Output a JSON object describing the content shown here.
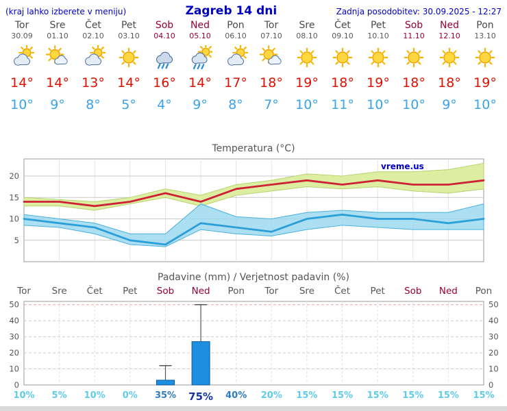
{
  "header": {
    "left_note": "(kraj lahko izberete v meniju)",
    "title": "Zagreb 14 dni",
    "updated": "Zadnja posodobitev: 30.09.2025 - 12:27"
  },
  "days": [
    {
      "name": "Tor",
      "date": "30.09",
      "weekend": false,
      "icon": "cloud-sun",
      "tmax": "14°",
      "tmin": "10°"
    },
    {
      "name": "Sre",
      "date": "01.10",
      "weekend": false,
      "icon": "sun-cloud",
      "tmax": "14°",
      "tmin": "9°"
    },
    {
      "name": "Čet",
      "date": "02.10",
      "weekend": false,
      "icon": "cloud-sun",
      "tmax": "13°",
      "tmin": "8°"
    },
    {
      "name": "Pet",
      "date": "03.10",
      "weekend": false,
      "icon": "sun",
      "tmax": "14°",
      "tmin": "5°"
    },
    {
      "name": "Sob",
      "date": "04.10",
      "weekend": true,
      "icon": "cloud-rain",
      "tmax": "16°",
      "tmin": "4°"
    },
    {
      "name": "Ned",
      "date": "05.10",
      "weekend": true,
      "icon": "cloud-rain-sun",
      "tmax": "14°",
      "tmin": "9°"
    },
    {
      "name": "Pon",
      "date": "06.10",
      "weekend": false,
      "icon": "cloud-sun",
      "tmax": "17°",
      "tmin": "8°"
    },
    {
      "name": "Tor",
      "date": "07.10",
      "weekend": false,
      "icon": "sun-cloud",
      "tmax": "18°",
      "tmin": "7°"
    },
    {
      "name": "Sre",
      "date": "08.10",
      "weekend": false,
      "icon": "sun",
      "tmax": "19°",
      "tmin": "10°"
    },
    {
      "name": "Čet",
      "date": "09.10",
      "weekend": false,
      "icon": "sun",
      "tmax": "18°",
      "tmin": "11°"
    },
    {
      "name": "Pet",
      "date": "10.10",
      "weekend": false,
      "icon": "sun",
      "tmax": "19°",
      "tmin": "10°"
    },
    {
      "name": "Sob",
      "date": "11.10",
      "weekend": true,
      "icon": "sun",
      "tmax": "18°",
      "tmin": "10°"
    },
    {
      "name": "Ned",
      "date": "12.10",
      "weekend": true,
      "icon": "sun",
      "tmax": "18°",
      "tmin": "9°"
    },
    {
      "name": "Pon",
      "date": "13.10",
      "weekend": false,
      "icon": "sun",
      "tmax": "19°",
      "tmin": "10°"
    }
  ],
  "chart_data": [
    {
      "type": "line",
      "title": "Temperatura (°C)",
      "watermark": "vreme.us",
      "x_labels": [
        "Tor 30.09",
        "Sre 01.10",
        "Čet 02.10",
        "Pet 03.10",
        "Sob 04.10",
        "Ned 05.10",
        "Pon 06.10",
        "Tor 07.10",
        "Sre 08.10",
        "Čet 09.10",
        "Pet 10.10",
        "Sob 11.10",
        "Ned 12.10",
        "Pon 13.10"
      ],
      "ylim": [
        0,
        24
      ],
      "yticks": [
        5,
        10,
        15,
        20
      ],
      "grid": true,
      "legend": "none",
      "series": [
        {
          "name": "max-temperature",
          "color": "#cc2233",
          "values": [
            14,
            14,
            13,
            14,
            16,
            14,
            17,
            18,
            19,
            18,
            19,
            18,
            18,
            19
          ]
        },
        {
          "name": "min-temperature",
          "color": "#2d9fd8",
          "values": [
            10,
            9,
            8,
            5,
            4,
            9,
            8,
            7,
            10,
            11,
            10,
            10,
            9,
            10
          ]
        }
      ],
      "bands": [
        {
          "name": "max-temperature-range",
          "fill": "#ddeea2",
          "edge": "#b6d36e",
          "opacity": 1,
          "upper": [
            15,
            14.5,
            14,
            15,
            17,
            15.5,
            18,
            19,
            20.5,
            20,
            21,
            21,
            21.5,
            23
          ],
          "lower": [
            13,
            13,
            12,
            13.5,
            15,
            13,
            15.5,
            16.5,
            17.5,
            17,
            17.5,
            16.5,
            16,
            17
          ]
        },
        {
          "name": "min-temperature-range",
          "fill": "#9fd9f0",
          "edge": "#49b0de",
          "opacity": 0.85,
          "upper": [
            11,
            10,
            9,
            6.5,
            6.5,
            13.5,
            10.5,
            10,
            11.5,
            12,
            11.5,
            11.5,
            11.5,
            13.5
          ],
          "lower": [
            8.5,
            8,
            6.5,
            4,
            3.5,
            7.5,
            6.5,
            6,
            7.5,
            8.5,
            8,
            7.5,
            7.5,
            7.5
          ]
        }
      ]
    },
    {
      "type": "bar",
      "title": "Padavine (mm) / Verjetnost padavin (%)",
      "categories": [
        "Tor",
        "Sre",
        "Čet",
        "Pet",
        "Sob",
        "Ned",
        "Pon",
        "Tor",
        "Sre",
        "Čet",
        "Pet",
        "Sob",
        "Ned",
        "Pon"
      ],
      "weekend": [
        false,
        false,
        false,
        false,
        true,
        true,
        false,
        false,
        false,
        false,
        false,
        true,
        true,
        false
      ],
      "values": [
        0,
        0,
        0,
        0,
        3,
        27,
        0,
        0,
        0,
        0,
        0,
        0,
        0,
        0
      ],
      "whisker_max": [
        0,
        0,
        0,
        0,
        12,
        50,
        0,
        0,
        0,
        0,
        0,
        0,
        0,
        0
      ],
      "probabilities": [
        "10%",
        "5%",
        "10%",
        "0%",
        "35%",
        "75%",
        "40%",
        "20%",
        "15%",
        "15%",
        "15%",
        "15%",
        "15%",
        "15%"
      ],
      "prob_levels": [
        "low",
        "low",
        "low",
        "low",
        "mid",
        "high",
        "mid",
        "low",
        "low",
        "low",
        "low",
        "low",
        "low",
        "low"
      ],
      "ylim": [
        0,
        52
      ],
      "yticks": [
        0,
        10,
        20,
        30,
        40,
        50
      ],
      "bar_color": "#1e8fe0"
    }
  ],
  "colors": {
    "header_blue": "#0000cc",
    "weekend_red": "#990033",
    "tmax_red": "#dd1100",
    "tmin_blue": "#38a3ea",
    "prob_low": "#5ecbea",
    "prob_mid": "#2e7bbf",
    "prob_high": "#16339e"
  }
}
